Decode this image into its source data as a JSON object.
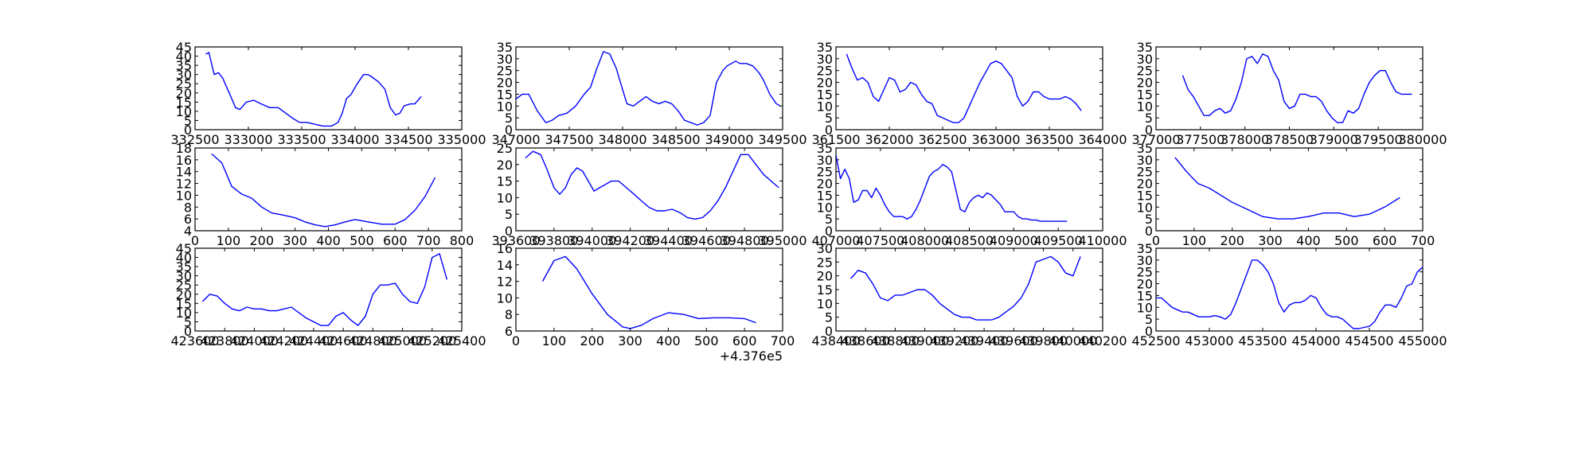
{
  "style": {
    "line_color": "#0000ff",
    "frame_color": "#000000",
    "background": "#ffffff"
  },
  "chart_data": [
    {
      "type": "line",
      "grid": false,
      "xlim": [
        332500,
        335000
      ],
      "ylim": [
        0,
        45
      ],
      "xticks": [
        332500,
        333000,
        333500,
        334000,
        334500,
        335000
      ],
      "yticks": [
        0,
        5,
        10,
        15,
        20,
        25,
        30,
        35,
        40,
        45
      ],
      "x": [
        332600,
        332630,
        332650,
        332680,
        332720,
        332760,
        332820,
        332880,
        332920,
        332980,
        333050,
        333120,
        333200,
        333280,
        333350,
        333420,
        333480,
        333550,
        333620,
        333700,
        333780,
        333840,
        333880,
        333920,
        333960,
        334020,
        334080,
        334120,
        334150,
        334220,
        334280,
        334330,
        334380,
        334420,
        334460,
        334520,
        334560,
        334620
      ],
      "y": [
        41,
        42,
        37,
        30,
        31,
        28,
        20,
        12,
        11,
        15,
        16,
        14,
        12,
        12,
        9,
        6,
        4,
        4,
        3,
        2,
        2,
        4,
        9,
        17,
        19,
        25,
        30,
        30,
        29,
        26,
        22,
        12,
        8,
        9,
        13,
        14,
        14,
        18
      ]
    },
    {
      "type": "line",
      "grid": false,
      "xlim": [
        347000,
        349500
      ],
      "ylim": [
        0,
        35
      ],
      "xticks": [
        347000,
        347500,
        348000,
        348500,
        349000,
        349500
      ],
      "yticks": [
        0,
        5,
        10,
        15,
        20,
        25,
        30,
        35
      ],
      "x": [
        347000,
        347060,
        347120,
        347200,
        347280,
        347340,
        347400,
        347480,
        347560,
        347640,
        347700,
        347760,
        347820,
        347880,
        347940,
        347980,
        348040,
        348100,
        348160,
        348220,
        348280,
        348340,
        348400,
        348460,
        348520,
        348580,
        348640,
        348700,
        348760,
        348820,
        348880,
        348940,
        348980,
        349020,
        349060,
        349100,
        349160,
        349220,
        349280,
        349320,
        349380,
        349440,
        349480
      ],
      "y": [
        13,
        15,
        15,
        8,
        3,
        4,
        6,
        7,
        10,
        15,
        18,
        26,
        33,
        32,
        26,
        20,
        11,
        10,
        12,
        14,
        12,
        11,
        12,
        11,
        8,
        4,
        3,
        2,
        3,
        6,
        20,
        25,
        27,
        28,
        29,
        28,
        28,
        27,
        24,
        21,
        15,
        11,
        10
      ]
    },
    {
      "type": "line",
      "grid": false,
      "xlim": [
        361500,
        364000
      ],
      "ylim": [
        0,
        35
      ],
      "xticks": [
        361500,
        362000,
        362500,
        363000,
        363500,
        364000
      ],
      "yticks": [
        0,
        5,
        10,
        15,
        20,
        25,
        30,
        35
      ],
      "x": [
        361600,
        361650,
        361700,
        361750,
        361800,
        361850,
        361900,
        361950,
        362000,
        362050,
        362100,
        362150,
        362200,
        362250,
        362300,
        362350,
        362400,
        362450,
        362500,
        362550,
        362600,
        362650,
        362700,
        362750,
        362800,
        362850,
        362900,
        362950,
        363000,
        363050,
        363100,
        363150,
        363200,
        363250,
        363300,
        363350,
        363400,
        363450,
        363500,
        363550,
        363600,
        363650,
        363700,
        363750,
        363800
      ],
      "y": [
        32,
        26,
        21,
        22,
        20,
        14,
        12,
        17,
        22,
        21,
        16,
        17,
        20,
        19,
        15,
        12,
        11,
        6,
        5,
        4,
        3,
        3,
        5,
        10,
        15,
        20,
        24,
        28,
        29,
        28,
        25,
        22,
        14,
        10,
        12,
        16,
        16,
        14,
        13,
        13,
        13,
        14,
        13,
        11,
        8
      ]
    },
    {
      "type": "line",
      "grid": false,
      "xlim": [
        377000,
        380000
      ],
      "ylim": [
        0,
        35
      ],
      "xticks": [
        377000,
        377500,
        378000,
        378500,
        379000,
        379500,
        380000
      ],
      "yticks": [
        0,
        5,
        10,
        15,
        20,
        25,
        30,
        35
      ],
      "x": [
        377300,
        377360,
        377420,
        377480,
        377540,
        377600,
        377660,
        377720,
        377780,
        377840,
        377900,
        377960,
        378020,
        378080,
        378140,
        378200,
        378260,
        378320,
        378380,
        378440,
        378500,
        378560,
        378620,
        378680,
        378740,
        378800,
        378860,
        378920,
        378980,
        379040,
        379100,
        379160,
        379220,
        379280,
        379340,
        379400,
        379460,
        379520,
        379580,
        379640,
        379700,
        379760,
        379820,
        379880
      ],
      "y": [
        23,
        17,
        14,
        10,
        6,
        6,
        8,
        9,
        7,
        8,
        13,
        20,
        30,
        31,
        28,
        32,
        31,
        25,
        21,
        12,
        9,
        10,
        15,
        15,
        14,
        14,
        12,
        8,
        5,
        3,
        3,
        8,
        7,
        9,
        15,
        20,
        23,
        25,
        25,
        20,
        16,
        15,
        15,
        15
      ]
    },
    {
      "type": "line",
      "grid": false,
      "xlim": [
        0,
        800
      ],
      "ylim": [
        4,
        18
      ],
      "xticks": [
        0,
        100,
        200,
        300,
        400,
        500,
        600,
        700,
        800
      ],
      "yticks": [
        4,
        6,
        8,
        10,
        12,
        14,
        16,
        18
      ],
      "x": [
        50,
        80,
        110,
        140,
        170,
        200,
        230,
        260,
        300,
        330,
        360,
        390,
        420,
        450,
        480,
        520,
        560,
        600,
        630,
        660,
        690,
        720
      ],
      "y": [
        17,
        15.5,
        11.5,
        10.2,
        9.5,
        8.0,
        7.0,
        6.7,
        6.2,
        5.5,
        5.0,
        4.7,
        5.0,
        5.5,
        5.9,
        5.5,
        5.1,
        5.1,
        5.9,
        7.5,
        9.8,
        13
      ]
    },
    {
      "type": "line",
      "grid": false,
      "xlim": [
        393600,
        395000
      ],
      "ylim": [
        0,
        25
      ],
      "xticks": [
        393600,
        393800,
        394000,
        394200,
        394400,
        394600,
        394800,
        395000
      ],
      "yticks": [
        0,
        5,
        10,
        15,
        20,
        25
      ],
      "x": [
        393650,
        393690,
        393730,
        393760,
        393800,
        393830,
        393860,
        393890,
        393920,
        393950,
        393980,
        394010,
        394040,
        394070,
        394100,
        394140,
        394180,
        394220,
        394260,
        394300,
        394340,
        394380,
        394420,
        394460,
        394500,
        394540,
        394580,
        394620,
        394660,
        394700,
        394740,
        394780,
        394820,
        394860,
        394900,
        394940,
        394980
      ],
      "y": [
        22,
        24,
        23,
        19,
        13,
        11,
        13,
        17,
        19,
        18,
        15,
        12,
        13,
        14,
        15,
        15,
        13,
        11,
        9,
        7,
        6,
        6,
        6.5,
        5.5,
        4,
        3.5,
        4,
        6,
        9,
        13,
        18,
        23,
        23,
        20,
        17,
        15,
        13
      ]
    },
    {
      "type": "line",
      "grid": false,
      "xlim": [
        407000,
        410000
      ],
      "ylim": [
        0,
        35
      ],
      "xticks": [
        407000,
        407500,
        408000,
        408500,
        409000,
        409500,
        410000
      ],
      "yticks": [
        0,
        5,
        10,
        15,
        20,
        25,
        30,
        35
      ],
      "x": [
        407000,
        407050,
        407100,
        407150,
        407200,
        407250,
        407300,
        407350,
        407400,
        407450,
        407500,
        407550,
        407600,
        407650,
        407700,
        407750,
        407800,
        407850,
        407900,
        407950,
        408000,
        408050,
        408100,
        408150,
        408200,
        408250,
        408300,
        408350,
        408400,
        408450,
        408500,
        408550,
        408600,
        408650,
        408700,
        408750,
        408800,
        408850,
        408900,
        408950,
        409000,
        409050,
        409100,
        409150,
        409200,
        409250,
        409300,
        409350,
        409400,
        409450,
        409500,
        409550,
        409600
      ],
      "y": [
        32,
        22,
        26,
        22,
        12,
        13,
        17,
        17,
        14,
        18,
        15,
        11,
        8,
        6,
        6,
        6,
        5,
        6,
        9,
        13,
        18,
        23,
        25,
        26,
        28,
        27,
        25,
        17,
        9,
        8,
        12,
        14,
        15,
        14,
        16,
        15,
        13,
        11,
        8,
        8,
        8,
        6,
        5,
        5,
        4.5,
        4.5,
        4,
        4,
        4,
        4,
        4,
        4,
        4
      ]
    },
    {
      "type": "line",
      "grid": false,
      "xlim": [
        0,
        700
      ],
      "ylim": [
        0,
        35
      ],
      "xticks": [
        0,
        100,
        200,
        300,
        400,
        500,
        600,
        700
      ],
      "yticks": [
        0,
        5,
        10,
        15,
        20,
        25,
        30,
        35
      ],
      "x": [
        50,
        80,
        110,
        140,
        170,
        200,
        240,
        280,
        320,
        360,
        400,
        440,
        480,
        520,
        560,
        600,
        640
      ],
      "y": [
        31,
        25,
        20,
        18,
        15,
        12,
        9,
        6,
        5,
        5,
        6,
        7.5,
        7.5,
        6,
        7,
        10,
        14
      ]
    },
    {
      "type": "line",
      "grid": false,
      "xlim": [
        423600,
        425400
      ],
      "ylim": [
        0,
        45
      ],
      "xticks": [
        423600,
        423800,
        424000,
        424200,
        424400,
        424600,
        424800,
        425000,
        425200,
        425400
      ],
      "yticks": [
        0,
        5,
        10,
        15,
        20,
        25,
        30,
        35,
        40,
        45
      ],
      "x": [
        423650,
        423700,
        423750,
        423800,
        423850,
        423900,
        423950,
        424000,
        424050,
        424100,
        424150,
        424200,
        424250,
        424300,
        424350,
        424400,
        424450,
        424500,
        424550,
        424600,
        424650,
        424700,
        424750,
        424800,
        424850,
        424900,
        424950,
        425000,
        425050,
        425100,
        425150,
        425200,
        425250,
        425300
      ],
      "y": [
        16,
        20,
        19,
        15,
        12,
        11,
        13,
        12,
        12,
        11,
        11,
        12,
        13,
        10,
        7,
        5,
        3,
        3,
        8,
        10,
        6,
        3,
        8,
        20,
        25,
        25,
        26,
        20,
        16,
        15,
        24,
        40,
        42,
        28
      ]
    },
    {
      "type": "line",
      "grid": false,
      "xlim": [
        0,
        700
      ],
      "ylim": [
        6,
        16
      ],
      "xticks": [
        0,
        100,
        200,
        300,
        400,
        500,
        600,
        700
      ],
      "yticks": [
        6,
        8,
        10,
        12,
        14,
        16
      ],
      "offset_label": "+4.376e5",
      "x": [
        70,
        100,
        130,
        160,
        200,
        240,
        280,
        300,
        330,
        360,
        400,
        440,
        480,
        520,
        560,
        600,
        630
      ],
      "y": [
        12,
        14.5,
        15,
        13.5,
        10.5,
        8,
        6.5,
        6.3,
        6.7,
        7.5,
        8.2,
        8,
        7.5,
        7.6,
        7.6,
        7.5,
        7
      ]
    },
    {
      "type": "line",
      "grid": false,
      "xlim": [
        438400,
        440200
      ],
      "ylim": [
        0,
        30
      ],
      "xticks": [
        438400,
        438600,
        438800,
        439000,
        439200,
        439400,
        439600,
        439800,
        440000,
        440200
      ],
      "yticks": [
        0,
        5,
        10,
        15,
        20,
        25,
        30
      ],
      "x": [
        438500,
        438550,
        438600,
        438650,
        438700,
        438750,
        438800,
        438850,
        438900,
        438950,
        439000,
        439050,
        439100,
        439150,
        439200,
        439250,
        439300,
        439350,
        439400,
        439450,
        439500,
        439550,
        439600,
        439650,
        439700,
        439750,
        439800,
        439850,
        439900,
        439950,
        440000,
        440050
      ],
      "y": [
        19,
        22,
        21,
        17,
        12,
        11,
        13,
        13,
        14,
        15,
        15,
        13,
        10,
        8,
        6,
        5,
        5,
        4,
        4,
        4,
        5,
        7,
        9,
        12,
        17,
        25,
        26,
        27,
        25,
        21,
        20,
        27
      ]
    },
    {
      "type": "line",
      "grid": false,
      "xlim": [
        452500,
        455000
      ],
      "ylim": [
        0,
        35
      ],
      "xticks": [
        452500,
        453000,
        453500,
        454000,
        454500,
        455000
      ],
      "yticks": [
        0,
        5,
        10,
        15,
        20,
        25,
        30,
        35
      ],
      "x": [
        452500,
        452550,
        452600,
        452650,
        452700,
        452750,
        452800,
        452850,
        452900,
        452950,
        453000,
        453050,
        453100,
        453150,
        453200,
        453250,
        453300,
        453350,
        453400,
        453450,
        453500,
        453550,
        453600,
        453650,
        453700,
        453750,
        453800,
        453850,
        453900,
        453950,
        454000,
        454050,
        454100,
        454150,
        454200,
        454250,
        454300,
        454350,
        454400,
        454450,
        454500,
        454550,
        454600,
        454650,
        454700,
        454750,
        454800,
        454850,
        454900,
        454950,
        455000
      ],
      "y": [
        14,
        14,
        12,
        10,
        9,
        8,
        8,
        7,
        6,
        6,
        6,
        6.5,
        6,
        5,
        7,
        12,
        18,
        24,
        30,
        30,
        28,
        25,
        20,
        12,
        8,
        11,
        12,
        12,
        13,
        15,
        14,
        10,
        7,
        6,
        6,
        5,
        3,
        1,
        1,
        1.5,
        2,
        4,
        8,
        11,
        11,
        10,
        14,
        19,
        20,
        25,
        27
      ]
    }
  ]
}
